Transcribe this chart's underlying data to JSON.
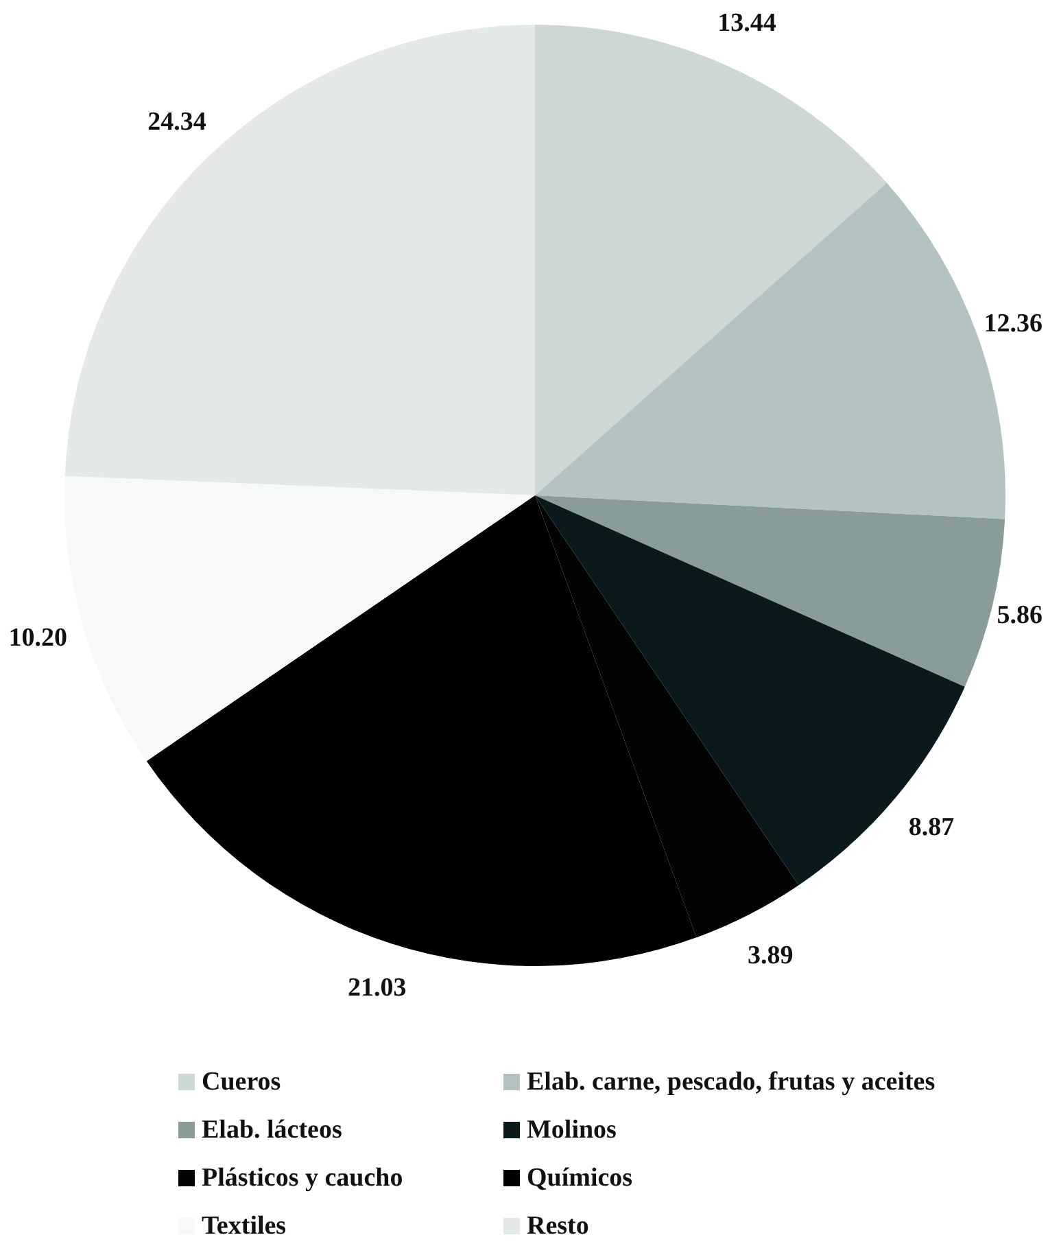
{
  "chart_data": {
    "type": "pie",
    "categories": [
      "Cueros",
      "Elab. carne, pescado, frutas y aceites",
      "Elab. lácteos",
      "Molinos",
      "Plásticos y caucho",
      "Químicos",
      "Textiles",
      "Resto"
    ],
    "values": [
      13.44,
      12.36,
      5.86,
      8.87,
      3.89,
      21.03,
      10.2,
      24.34
    ],
    "value_labels": [
      "13.44",
      "12.36",
      "5.86",
      "8.87",
      "3.89",
      "21.03",
      "10.20",
      "24.34"
    ],
    "colors": [
      "#cdd8d6",
      "#b3c3c1",
      "#8a9c99",
      "#0a1a1c",
      "#020404",
      "#000000",
      "#f7f9f8",
      "#e3e9e8"
    ],
    "legend": "bottom"
  }
}
